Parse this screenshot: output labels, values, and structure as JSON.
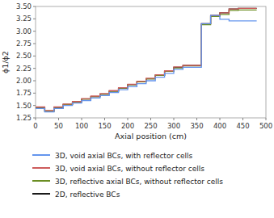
{
  "chart_data": {
    "type": "step",
    "xlabel": "Axial position (cm)",
    "ylabel": "ϕ1/ϕ2",
    "x": [
      0,
      20,
      40,
      60,
      80,
      100,
      120,
      140,
      160,
      180,
      200,
      220,
      240,
      260,
      280,
      300,
      320,
      340,
      360,
      380,
      400,
      420,
      440,
      460,
      480
    ],
    "series": [
      {
        "name": "3D, void axial BCs, with reflector cells",
        "color": "#6495ed",
        "values": [
          1.44,
          1.37,
          1.44,
          1.5,
          1.55,
          1.6,
          1.65,
          1.7,
          1.76,
          1.82,
          1.88,
          1.94,
          2.0,
          2.07,
          2.15,
          2.23,
          2.27,
          2.27,
          3.15,
          3.32,
          3.24,
          3.21,
          3.21,
          3.21,
          3.21
        ]
      },
      {
        "name": "3D, void axial BCs, without reflector cells",
        "color": "#cd5c5c",
        "values": [
          1.47,
          1.4,
          1.47,
          1.53,
          1.58,
          1.64,
          1.69,
          1.74,
          1.8,
          1.86,
          1.93,
          1.99,
          2.05,
          2.12,
          2.2,
          2.28,
          2.31,
          2.31,
          3.15,
          3.32,
          3.37,
          3.45,
          3.46,
          3.46,
          3.46
        ]
      },
      {
        "name": "3D, reflective axial BCs, without reflector cells",
        "color": "#6b8e23",
        "values": [
          1.46,
          1.39,
          1.46,
          1.52,
          1.57,
          1.63,
          1.68,
          1.73,
          1.79,
          1.85,
          1.92,
          1.98,
          2.04,
          2.11,
          2.19,
          2.26,
          2.3,
          2.3,
          3.13,
          3.3,
          3.34,
          3.42,
          3.43,
          3.43,
          3.43
        ]
      },
      {
        "name": "2D, reflective BCs",
        "color": "#1a1a1a",
        "values": [
          1.45,
          1.38,
          1.45,
          1.52,
          1.57,
          1.63,
          1.68,
          1.73,
          1.79,
          1.85,
          1.92,
          1.98,
          2.04,
          2.11,
          2.19,
          2.27,
          2.31,
          2.31,
          3.15,
          3.32,
          3.37,
          3.45,
          3.46,
          3.46,
          3.46
        ]
      }
    ],
    "xlim": [
      0,
      500
    ],
    "ylim": [
      1.25,
      3.5
    ],
    "xticks": [
      0,
      50,
      100,
      150,
      200,
      250,
      300,
      350,
      400,
      450,
      500
    ],
    "yticks": [
      1.25,
      {
        "value": 1.5,
        "label": "1.50"
      },
      1.75,
      {
        "value": 2.0,
        "label": "2.00"
      },
      2.25,
      {
        "value": 2.5,
        "label": "2.50"
      },
      2.75,
      {
        "value": 3.0,
        "label": "3.00"
      },
      3.25,
      {
        "value": 3.5,
        "label": "3.50"
      }
    ]
  }
}
